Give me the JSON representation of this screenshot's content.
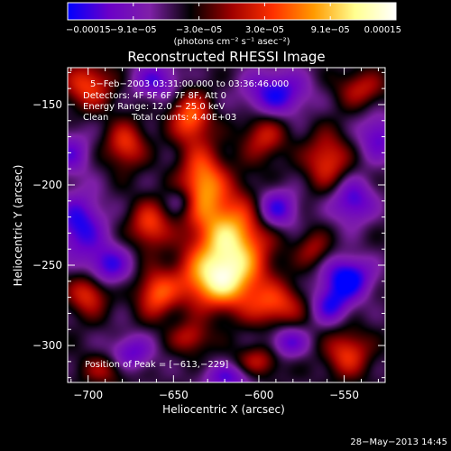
{
  "chart_data": {
    "type": "heatmap",
    "title": "Reconstructed RHESSI Image",
    "xlabel": "Heliocentric X (arcsec)",
    "ylabel": "Heliocentric Y (arcsec)",
    "xlim": [
      -712,
      -526
    ],
    "ylim": [
      -323,
      -127
    ],
    "x_ticks": [
      -700,
      -650,
      -600,
      -550
    ],
    "y_ticks": [
      -150,
      -200,
      -250,
      -300
    ],
    "x_tick_labels": [
      "−700",
      "−650",
      "−600",
      "−550"
    ],
    "y_tick_labels": [
      "−150",
      "−200",
      "−250",
      "−300"
    ],
    "colorbar": {
      "range": [
        -0.00015,
        0.00015
      ],
      "tick_labels": [
        "−0.00015",
        "−9.1e−05",
        "−3.0e−05",
        "3.0e−05",
        "9.1e−05",
        "0.00015"
      ],
      "unit": "(photons cm⁻² s⁻¹ asec⁻²)",
      "colors": [
        "#0000ff",
        "#6a00c8",
        "#7f20a8",
        "#000000",
        "#a00000",
        "#ff3000",
        "#ff9a00",
        "#ffff90",
        "#ffffff"
      ]
    },
    "annotations": {
      "date": "5−Feb−2003 03:31:00.000 to 03:36:46.000",
      "detectors": "Detectors: 4F 5F 6F 7F 8F, Att 0",
      "energy": "Energy Range: 12.0 − 25.0 keV",
      "method": "Clean",
      "counts": "Total counts: 4.40E+03",
      "peak": "Position of Peak = [−613,−229]"
    },
    "timestamp": "28−May−2013 14:45",
    "sources": [
      {
        "x": -617,
        "y": -235,
        "amp": 0.00015,
        "sx": 15,
        "sy": 20
      },
      {
        "x": -625,
        "y": -260,
        "amp": 0.00012,
        "sx": 16,
        "sy": 12
      },
      {
        "x": -633,
        "y": -198,
        "amp": 0.00011,
        "sx": 9,
        "sy": 15
      },
      {
        "x": -660,
        "y": -268,
        "amp": 9e-05,
        "sx": 8,
        "sy": 10
      },
      {
        "x": -640,
        "y": -158,
        "amp": 0.0001,
        "sx": 8,
        "sy": 11
      },
      {
        "x": -664,
        "y": -225,
        "amp": 8.5e-05,
        "sx": 8,
        "sy": 10
      },
      {
        "x": -590,
        "y": -275,
        "amp": 8e-05,
        "sx": 12,
        "sy": 9
      },
      {
        "x": -597,
        "y": -170,
        "amp": 6.5e-05,
        "sx": 9,
        "sy": 10
      },
      {
        "x": -700,
        "y": -268,
        "amp": 8e-05,
        "sx": 8,
        "sy": 9
      },
      {
        "x": -700,
        "y": -138,
        "amp": 8.5e-05,
        "sx": 10,
        "sy": 10
      },
      {
        "x": -678,
        "y": -175,
        "amp": 8e-05,
        "sx": 8,
        "sy": 10
      },
      {
        "x": -560,
        "y": -185,
        "amp": 8e-05,
        "sx": 9,
        "sy": 12
      },
      {
        "x": -540,
        "y": -140,
        "amp": 6e-05,
        "sx": 10,
        "sy": 8
      },
      {
        "x": -548,
        "y": -305,
        "amp": 8e-05,
        "sx": 9,
        "sy": 10
      },
      {
        "x": -600,
        "y": -310,
        "amp": 6e-05,
        "sx": 9,
        "sy": 7
      },
      {
        "x": -690,
        "y": -315,
        "amp": 5e-05,
        "sx": 10,
        "sy": 7
      },
      {
        "x": -568,
        "y": -240,
        "amp": 5e-05,
        "sx": 7,
        "sy": 8
      },
      {
        "x": -640,
        "y": -295,
        "amp": 6e-05,
        "sx": 8,
        "sy": 7
      },
      {
        "x": -705,
        "y": -225,
        "amp": -9e-05,
        "sx": 10,
        "sy": 14
      },
      {
        "x": -688,
        "y": -250,
        "amp": -8e-05,
        "sx": 9,
        "sy": 9
      },
      {
        "x": -590,
        "y": -215,
        "amp": -9e-05,
        "sx": 9,
        "sy": 9
      },
      {
        "x": -548,
        "y": -258,
        "amp": -0.00011,
        "sx": 10,
        "sy": 9
      },
      {
        "x": -558,
        "y": -275,
        "amp": -8e-05,
        "sx": 8,
        "sy": 8
      },
      {
        "x": -590,
        "y": -143,
        "amp": -9e-05,
        "sx": 13,
        "sy": 10
      },
      {
        "x": -660,
        "y": -135,
        "amp": -7e-05,
        "sx": 10,
        "sy": 8
      },
      {
        "x": -545,
        "y": -210,
        "amp": -8e-05,
        "sx": 9,
        "sy": 10
      },
      {
        "x": -675,
        "y": -305,
        "amp": -7e-05,
        "sx": 9,
        "sy": 8
      },
      {
        "x": -618,
        "y": -320,
        "amp": -7e-05,
        "sx": 10,
        "sy": 6
      },
      {
        "x": -583,
        "y": -298,
        "amp": -7e-05,
        "sx": 8,
        "sy": 7
      },
      {
        "x": -710,
        "y": -180,
        "amp": -6e-05,
        "sx": 8,
        "sy": 10
      },
      {
        "x": -645,
        "y": -210,
        "amp": -4e-05,
        "sx": 6,
        "sy": 6
      },
      {
        "x": -530,
        "y": -170,
        "amp": -7e-05,
        "sx": 8,
        "sy": 10
      }
    ],
    "background": -5e-05
  }
}
